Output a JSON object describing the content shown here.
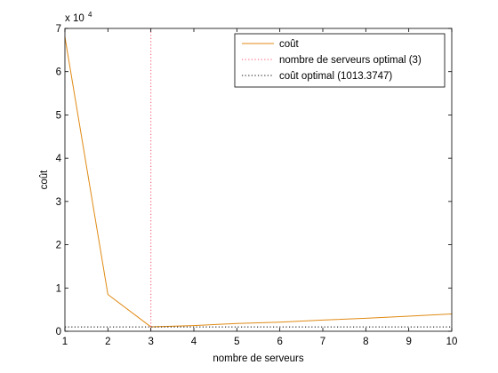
{
  "colors": {
    "background": "#ffffff",
    "axes": "#000000",
    "cost_line": "#e08a14",
    "optimal_servers_line": "#ff4d6a",
    "optimal_cost_line": "#000000"
  },
  "chart_data": {
    "type": "line",
    "xlabel": "nombre de serveurs",
    "ylabel": "coût",
    "y_scale_label": "x 10",
    "y_scale_exponent": "4",
    "xlim": [
      1,
      10
    ],
    "ylim": [
      0,
      70000
    ],
    "x_ticks": [
      1,
      2,
      3,
      4,
      5,
      6,
      7,
      8,
      9,
      10
    ],
    "y_ticks": [
      0,
      10000,
      20000,
      30000,
      40000,
      50000,
      60000,
      70000
    ],
    "y_tick_labels": [
      "0",
      "1",
      "2",
      "3",
      "4",
      "5",
      "6",
      "7"
    ],
    "grid": false,
    "legend_position": "top-right",
    "series": [
      {
        "name": "coût",
        "style": "solid",
        "color": "#e08a14",
        "x": [
          1,
          2,
          3,
          4,
          5,
          6,
          7,
          8,
          9,
          10
        ],
        "y": [
          68000,
          8500,
          1013.3747,
          1300,
          1800,
          2100,
          2600,
          3000,
          3500,
          4000
        ]
      },
      {
        "name": "nombre de serveurs optimal (3)",
        "style": "dotted",
        "color": "#ff4d6a",
        "orientation": "vertical",
        "value": 3
      },
      {
        "name": "coût optimal (1013.3747)",
        "style": "dotted",
        "color": "#000000",
        "orientation": "horizontal",
        "value": 1013.3747
      }
    ]
  }
}
